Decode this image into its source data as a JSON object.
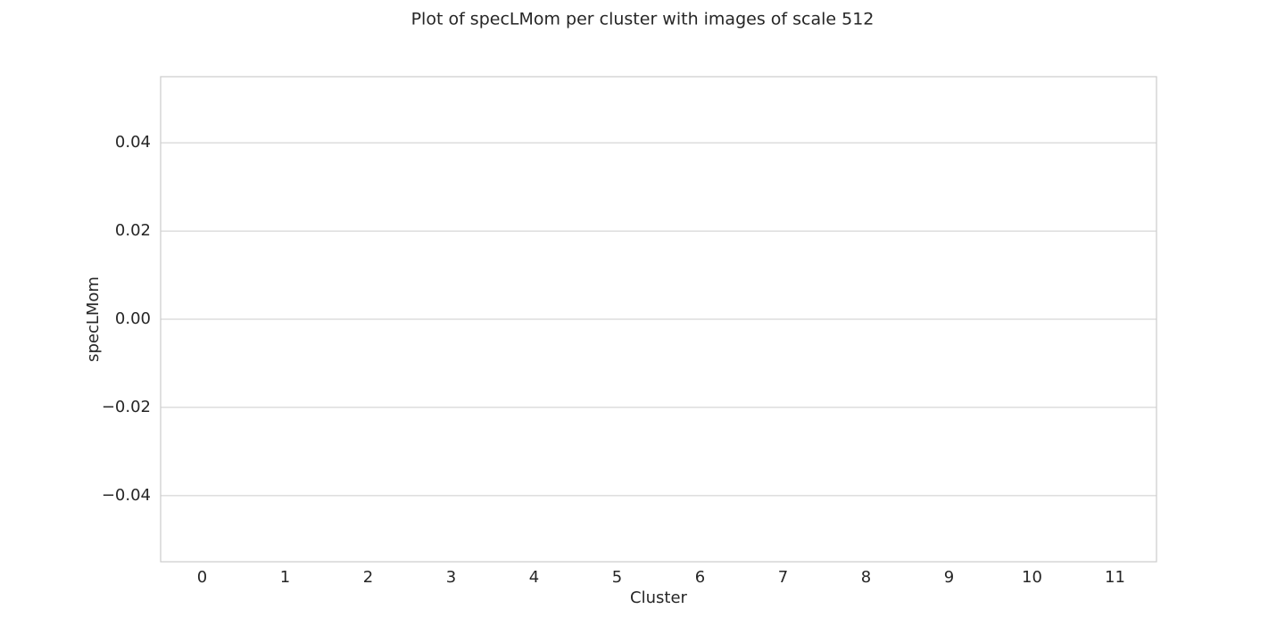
{
  "chart_data": {
    "type": "box",
    "title": "Plot of specLMom per cluster with images of scale 512",
    "x_label": "Cluster",
    "y_label": "specLMom",
    "categories": [
      "0",
      "1",
      "2",
      "3",
      "4",
      "5",
      "6",
      "7",
      "8",
      "9",
      "10",
      "11"
    ],
    "ylim": [
      -0.055,
      0.055
    ],
    "yticks": [
      {
        "value": -0.04,
        "label": "−0.04"
      },
      {
        "value": -0.02,
        "label": "−0.02"
      },
      {
        "value": 0,
        "label": "0.00"
      },
      0.02,
      0.04
    ],
    "grid": true
  }
}
